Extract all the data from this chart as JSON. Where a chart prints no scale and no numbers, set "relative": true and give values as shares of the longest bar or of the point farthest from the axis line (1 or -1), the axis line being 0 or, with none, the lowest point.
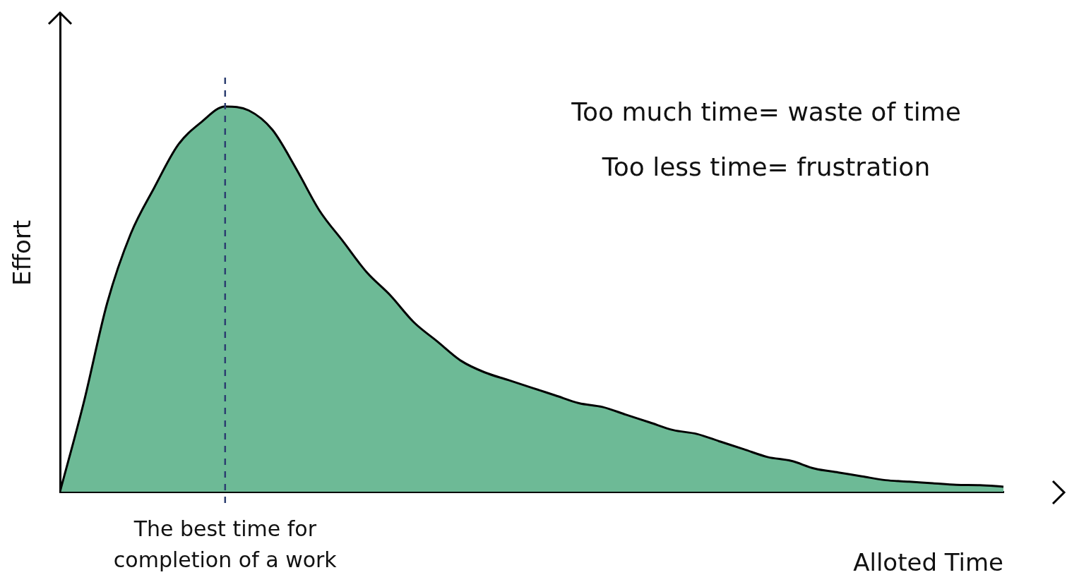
{
  "chart_data": {
    "type": "area",
    "relative": true,
    "xlabel": "Alloted Time",
    "ylabel": "Effort",
    "categories": [
      null,
      null,
      null,
      null,
      null,
      null,
      null,
      null,
      null,
      null,
      null,
      null,
      null,
      null,
      null,
      null,
      null,
      null,
      null,
      null,
      null,
      null,
      null,
      null,
      null,
      null,
      null,
      null,
      null,
      null,
      null,
      null,
      null,
      null,
      null,
      null,
      null,
      null,
      null,
      null,
      null
    ],
    "series": [
      {
        "color": "#6dba96",
        "values": [
          0,
          0.23,
          0.49,
          0.67,
          0.79,
          0.9,
          0.96,
          1,
          0.99,
          0.94,
          0.84,
          0.73,
          0.65,
          0.57,
          0.51,
          0.44,
          0.39,
          0.34,
          0.31,
          0.29,
          0.27,
          0.25,
          0.23,
          0.22,
          0.2,
          0.18,
          0.16,
          0.15,
          0.13,
          0.11,
          0.09,
          0.08,
          0.06,
          0.05,
          0.04,
          0.03,
          0.026,
          0.022,
          0.018,
          0.017,
          0.013
        ]
      }
    ],
    "annotations": [
      "Too much time= waste of time",
      "Too less time= frustration",
      "The best time for completion of a work"
    ],
    "grid": false,
    "legend": false,
    "marker": "none"
  }
}
